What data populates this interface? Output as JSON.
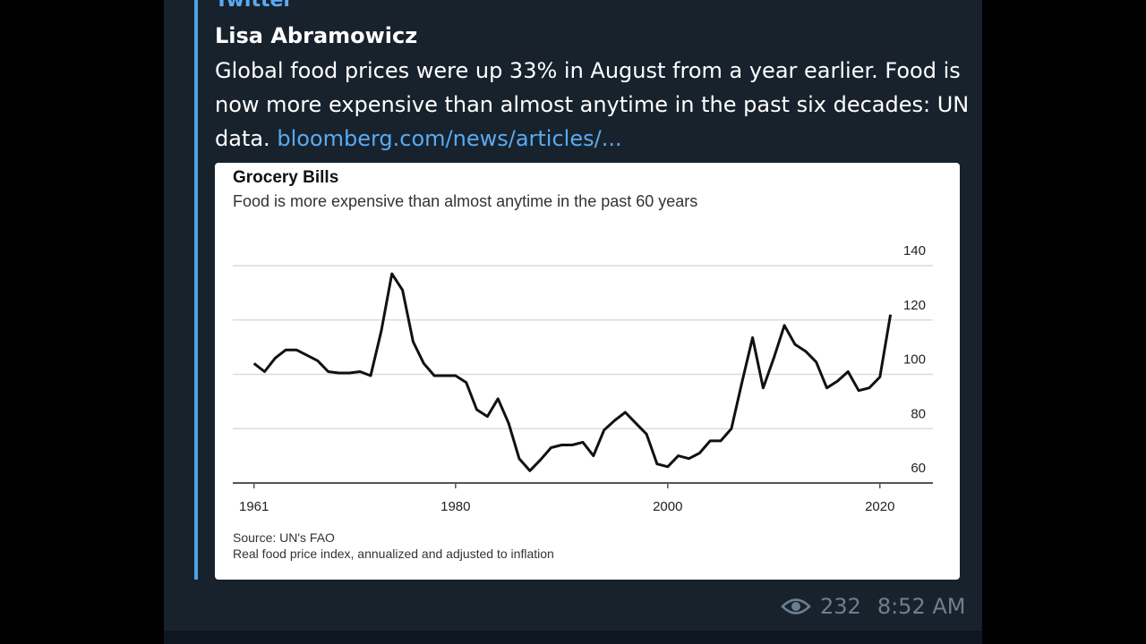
{
  "message": {
    "source": "Twitter",
    "author": "Lisa Abramowicz",
    "text": "Global food prices were up 33% in August from a year earlier. Food is now more expensive than almost anytime in the past six decades: UN data. ",
    "link_text": "bloomberg.com/news/articles/...",
    "views": "232",
    "time": "8:52 AM"
  },
  "icons": {
    "views": "eye-icon"
  },
  "colors": {
    "link": "#5aaaf0",
    "quote_bar": "#4da3e8",
    "bubble": "#18222d"
  },
  "chart_data": {
    "type": "line",
    "title": "Grocery Bills",
    "subtitle": "Food is more expensive than almost anytime in the past 60 years",
    "source": "Source: UN's FAO",
    "note": "Real food price index, annualized and adjusted to inflation",
    "xlabel": "",
    "ylabel": "",
    "x_ticks": [
      1961,
      1980,
      2000,
      2020
    ],
    "y_ticks": [
      60,
      80,
      100,
      120,
      140
    ],
    "ylim": [
      60,
      140
    ],
    "grid": true,
    "y_axis_side": "right",
    "series": [
      {
        "x": [
          1961,
          1962,
          1963,
          1964,
          1965,
          1966,
          1967,
          1968,
          1969,
          1970,
          1971,
          1972,
          1973,
          1974,
          1975,
          1976,
          1977,
          1978,
          1979,
          1980,
          1981,
          1982,
          1983,
          1984,
          1985,
          1986,
          1987,
          1988,
          1989,
          1990,
          1991,
          1992,
          1993,
          1994,
          1995,
          1996,
          1997,
          1998,
          1999,
          2000,
          2001,
          2002,
          2003,
          2004,
          2005,
          2006,
          2007,
          2008,
          2009,
          2010,
          2011,
          2012,
          2013,
          2014,
          2015,
          2016,
          2017,
          2018,
          2019,
          2020,
          2021
        ],
        "values": [
          104,
          101,
          106,
          109,
          109,
          107,
          105,
          101,
          100.5,
          100.5,
          101,
          99.5,
          116,
          137,
          131,
          112,
          104,
          99.5,
          99.5,
          99.5,
          97,
          87,
          84.5,
          91,
          82,
          69,
          64.5,
          68.5,
          73,
          74,
          74,
          75,
          70,
          79.5,
          83,
          86,
          82,
          78,
          67,
          66,
          70,
          69,
          71,
          75.5,
          75.5,
          80,
          97,
          113.5,
          95,
          106,
          118,
          111,
          108.5,
          104.5,
          95,
          97.5,
          101,
          94,
          95,
          99,
          122
        ]
      }
    ]
  }
}
